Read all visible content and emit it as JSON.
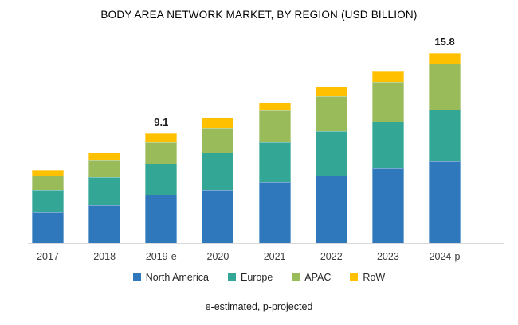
{
  "title": "BODY AREA NETWORK MARKET, BY REGION (USD BILLION)",
  "footnote": "e-estimated, p-projected",
  "chart_data": {
    "type": "bar",
    "stacked": true,
    "title": "BODY AREA NETWORK MARKET, BY REGION (USD BILLION)",
    "xlabel": "",
    "ylabel": "",
    "unit": "USD Billion",
    "categories": [
      "2017",
      "2018",
      "2019-e",
      "2020",
      "2021",
      "2022",
      "2023",
      "2024-p"
    ],
    "series": [
      {
        "name": "North America",
        "color": "#2f78bc",
        "values": [
          2.6,
          3.2,
          4.0,
          4.4,
          5.1,
          5.6,
          6.2,
          6.8
        ]
      },
      {
        "name": "Europe",
        "color": "#33a695",
        "values": [
          1.8,
          2.3,
          2.6,
          3.1,
          3.3,
          3.7,
          3.9,
          4.3
        ]
      },
      {
        "name": "APAC",
        "color": "#9abb59",
        "values": [
          1.2,
          1.4,
          1.8,
          2.1,
          2.6,
          2.9,
          3.3,
          3.8
        ]
      },
      {
        "name": "RoW",
        "color": "#ffc000",
        "values": [
          0.5,
          0.6,
          0.7,
          0.8,
          0.7,
          0.8,
          0.9,
          0.9
        ]
      }
    ],
    "totals": [
      6.1,
      7.5,
      9.1,
      10.4,
      11.7,
      13.0,
      14.3,
      15.8
    ],
    "data_labels": {
      "2019-e": "9.1",
      "2024-p": "15.8"
    },
    "ylim": [
      0,
      16.5
    ],
    "grid": false,
    "axis_line_color": "#d9d9d9",
    "legend_position": "bottom"
  }
}
